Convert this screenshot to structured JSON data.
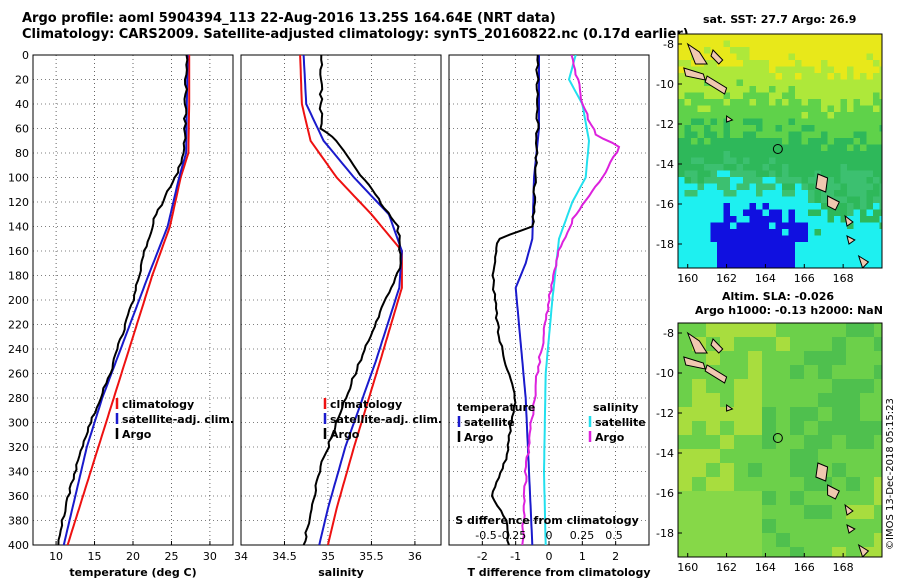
{
  "header": {
    "line1": "Argo profile: aoml 5904394_113 22-Aug-2016 13.25S 164.64E (NRT data)",
    "line2": "Climatology: CARS2009. Satellite-adjusted climatology: synTS_20160822.nc (0.17d earlier)"
  },
  "credit": "©IMOS 13-Dec-2018 05:15:23",
  "colors": {
    "climatology": "#ee1111",
    "satellite": "#1a1acc",
    "argo": "#000000",
    "s_sat": "#22e0ee",
    "s_argo": "#dd22dd"
  },
  "chart_data": [
    {
      "type": "line",
      "name": "temperature",
      "xlabel": "temperature (deg C)",
      "ylabel": "",
      "xlim": [
        7,
        33
      ],
      "ylim": [
        400,
        0
      ],
      "xticks": [
        "10",
        "15",
        "20",
        "25",
        "30"
      ],
      "yticks": [
        "0",
        "20",
        "40",
        "60",
        "80",
        "100",
        "120",
        "140",
        "160",
        "180",
        "200",
        "220",
        "240",
        "260",
        "280",
        "300",
        "320",
        "340",
        "360",
        "380",
        "400"
      ],
      "legend": [
        "climatology",
        "satellite-adj. clim.",
        "Argo"
      ],
      "series": [
        {
          "name": "climatology",
          "color": "#ee1111",
          "points": [
            [
              27.3,
              0
            ],
            [
              27.3,
              40
            ],
            [
              27.2,
              80
            ],
            [
              26.2,
              100
            ],
            [
              24.8,
              140
            ],
            [
              22.5,
              180
            ],
            [
              20,
              230
            ],
            [
              17.5,
              280
            ],
            [
              15,
              330
            ],
            [
              13,
              370
            ],
            [
              11.5,
              400
            ]
          ]
        },
        {
          "name": "satellite-adj. clim.",
          "color": "#1a1acc",
          "points": [
            [
              27.1,
              0
            ],
            [
              27.0,
              40
            ],
            [
              26.9,
              80
            ],
            [
              26,
              100
            ],
            [
              24.5,
              140
            ],
            [
              22,
              180
            ],
            [
              19,
              230
            ],
            [
              16,
              280
            ],
            [
              14,
              320
            ],
            [
              12.5,
              360
            ],
            [
              11,
              400
            ]
          ]
        },
        {
          "name": "Argo",
          "color": "#000000",
          "points": [
            [
              27.0,
              0
            ],
            [
              26.8,
              40
            ],
            [
              26.7,
              80
            ],
            [
              25.5,
              100
            ],
            [
              23,
              130
            ],
            [
              21.5,
              160
            ],
            [
              20,
              200
            ],
            [
              17,
              260
            ],
            [
              14.5,
              300
            ],
            [
              12,
              350
            ],
            [
              10.8,
              380
            ],
            [
              10.3,
              400
            ]
          ]
        }
      ]
    },
    {
      "type": "line",
      "name": "salinity",
      "xlabel": "salinity",
      "xlim": [
        34,
        36.3
      ],
      "ylim": [
        400,
        0
      ],
      "xticks": [
        "34",
        "34.5",
        "35",
        "35.5",
        "36"
      ],
      "legend": [
        "climatology",
        "satellite-adj. clim.",
        "Argo"
      ],
      "series": [
        {
          "name": "climatology",
          "color": "#ee1111",
          "points": [
            [
              34.68,
              0
            ],
            [
              34.7,
              40
            ],
            [
              34.8,
              70
            ],
            [
              35.1,
              100
            ],
            [
              35.5,
              130
            ],
            [
              35.85,
              160
            ],
            [
              35.85,
              190
            ],
            [
              35.6,
              250
            ],
            [
              35.3,
              320
            ],
            [
              35.1,
              370
            ],
            [
              35.0,
              400
            ]
          ]
        },
        {
          "name": "satellite-adj. clim.",
          "color": "#1a1acc",
          "points": [
            [
              34.72,
              0
            ],
            [
              34.75,
              40
            ],
            [
              34.95,
              70
            ],
            [
              35.3,
              100
            ],
            [
              35.7,
              130
            ],
            [
              35.85,
              160
            ],
            [
              35.82,
              190
            ],
            [
              35.55,
              250
            ],
            [
              35.2,
              320
            ],
            [
              35.0,
              370
            ],
            [
              34.9,
              400
            ]
          ]
        },
        {
          "name": "Argo",
          "color": "#000000",
          "points": [
            [
              34.92,
              0
            ],
            [
              34.92,
              60
            ],
            [
              35.1,
              70
            ],
            [
              35.3,
              90
            ],
            [
              35.5,
              110
            ],
            [
              35.8,
              140
            ],
            [
              35.85,
              170
            ],
            [
              35.6,
              210
            ],
            [
              35.2,
              280
            ],
            [
              34.9,
              340
            ],
            [
              34.75,
              390
            ],
            [
              34.72,
              400
            ]
          ]
        }
      ]
    },
    {
      "type": "line",
      "name": "T/S difference",
      "xlabel": "T difference from climatology",
      "xlabel_top": "S difference from climatology",
      "xlim": [
        -3,
        3
      ],
      "ylim": [
        400,
        0
      ],
      "xticks": [
        "-2",
        "-1",
        "0",
        "1",
        "2"
      ],
      "top_ticks": [
        "-0.5",
        "-0.25",
        "0",
        "0.25",
        "0.5"
      ],
      "legend_t_title": "temperature",
      "legend_s_title": "salinity",
      "legend": [
        "satellite",
        "Argo",
        "satellite",
        "Argo"
      ],
      "series": [
        {
          "name": "T satellite",
          "color": "#1a1acc",
          "points": [
            [
              -0.3,
              0
            ],
            [
              -0.3,
              60
            ],
            [
              -0.45,
              100
            ],
            [
              -0.5,
              150
            ],
            [
              -0.7,
              170
            ],
            [
              -1.0,
              190
            ],
            [
              -0.9,
              220
            ],
            [
              -0.7,
              280
            ],
            [
              -0.6,
              340
            ],
            [
              -0.5,
              400
            ]
          ]
        },
        {
          "name": "T Argo",
          "color": "#000000",
          "points": [
            [
              -0.35,
              0
            ],
            [
              -0.35,
              60
            ],
            [
              -0.4,
              100
            ],
            [
              -0.5,
              140
            ],
            [
              -1.5,
              150
            ],
            [
              -1.7,
              180
            ],
            [
              -1.5,
              230
            ],
            [
              -1.0,
              280
            ],
            [
              -1.3,
              330
            ],
            [
              -1.7,
              360
            ],
            [
              -1.3,
              380
            ],
            [
              -1.2,
              400
            ]
          ]
        },
        {
          "name": "S satellite",
          "color": "#22e0ee",
          "points": [
            [
              0.8,
              0
            ],
            [
              0.6,
              20
            ],
            [
              1.0,
              40
            ],
            [
              1.2,
              70
            ],
            [
              1.1,
              100
            ],
            [
              0.7,
              120
            ],
            [
              0.3,
              150
            ],
            [
              0.1,
              200
            ],
            [
              -0.1,
              260
            ],
            [
              -0.15,
              340
            ],
            [
              -0.1,
              400
            ]
          ]
        },
        {
          "name": "S Argo",
          "color": "#dd22dd",
          "points": [
            [
              0.7,
              0
            ],
            [
              1.0,
              40
            ],
            [
              1.4,
              65
            ],
            [
              2.1,
              75
            ],
            [
              1.6,
              100
            ],
            [
              0.8,
              130
            ],
            [
              0.3,
              160
            ],
            [
              0.0,
              200
            ],
            [
              -0.4,
              270
            ],
            [
              -0.7,
              340
            ],
            [
              -0.8,
              400
            ]
          ]
        }
      ]
    },
    {
      "type": "heatmap",
      "name": "SST map",
      "title": "sat. SST: 27.7 Argo: 26.9",
      "xlim": [
        159.5,
        170
      ],
      "ylim": [
        -19.2,
        -7.5
      ],
      "xticks": [
        "160",
        "162",
        "164",
        "166",
        "168"
      ],
      "yticks": [
        "-8",
        "-10",
        "-12",
        "-14",
        "-16",
        "-18"
      ],
      "profile_location": [
        164.64,
        -13.25
      ]
    },
    {
      "type": "heatmap",
      "name": "SLA map",
      "title_line1": "Altim. SLA: -0.026",
      "title_line2": "Argo h1000: -0.13 h2000: NaN",
      "xlim": [
        159.5,
        170
      ],
      "ylim": [
        -19.2,
        -7.5
      ],
      "xticks": [
        "160",
        "162",
        "164",
        "166",
        "168"
      ],
      "yticks": [
        "-8",
        "-10",
        "-12",
        "-14",
        "-16",
        "-18"
      ],
      "profile_location": [
        164.64,
        -13.25
      ]
    }
  ]
}
